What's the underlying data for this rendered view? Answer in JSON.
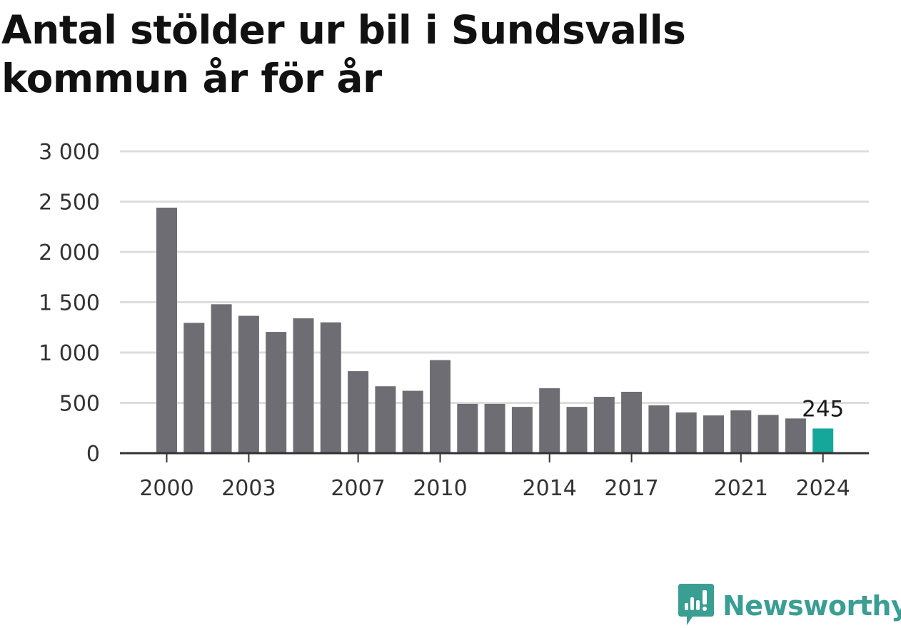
{
  "colors": {
    "bar": "#6e6d73",
    "highlight": "#16a79b",
    "grid": "#dddddd",
    "axis": "#333333",
    "brand": "#3a9e92"
  },
  "brand": {
    "name": "Newsworthy",
    "icon": "newsworthy-logo-icon"
  },
  "chart_data": {
    "type": "bar",
    "title": "Antal stölder ur bil i Sundsvalls kommun år för år",
    "xlabel": "",
    "ylabel": "",
    "x": [
      2000,
      2001,
      2002,
      2003,
      2004,
      2005,
      2006,
      2007,
      2008,
      2009,
      2010,
      2011,
      2012,
      2013,
      2014,
      2015,
      2016,
      2017,
      2018,
      2019,
      2020,
      2021,
      2022,
      2023,
      2024
    ],
    "values": [
      2440,
      1295,
      1480,
      1365,
      1205,
      1340,
      1300,
      815,
      665,
      620,
      925,
      490,
      490,
      460,
      645,
      460,
      560,
      610,
      475,
      405,
      375,
      425,
      380,
      345,
      245
    ],
    "x_tick_labels": [
      "2000",
      "2003",
      "2007",
      "2010",
      "2014",
      "2017",
      "2021",
      "2024"
    ],
    "y_ticks": [
      0,
      500,
      1000,
      1500,
      2000,
      2500,
      3000
    ],
    "y_tick_labels": [
      "0",
      "500",
      "1 000",
      "1 500",
      "2 000",
      "2 500",
      "3 000"
    ],
    "ylim": [
      0,
      3000
    ],
    "grid": true,
    "legend": "none",
    "highlight": {
      "x": 2024,
      "label": "245"
    }
  }
}
